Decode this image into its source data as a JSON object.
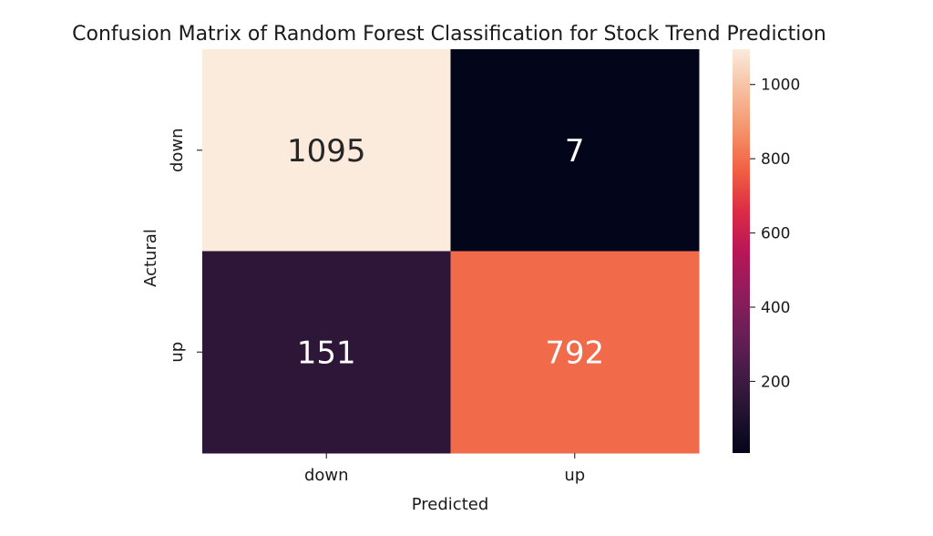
{
  "chart_data": {
    "type": "heatmap",
    "title": "Confusion Matrix of Random Forest Classification for Stock Trend Prediction",
    "xlabel": "Predicted",
    "ylabel": "Actural",
    "x_categories": [
      "down",
      "up"
    ],
    "y_categories": [
      "down",
      "up"
    ],
    "values": [
      [
        1095,
        7
      ],
      [
        151,
        792
      ]
    ],
    "colorbar": {
      "colormap": "rocket",
      "range": [
        7,
        1095
      ],
      "ticks": [
        200,
        400,
        600,
        800,
        1000
      ]
    }
  }
}
